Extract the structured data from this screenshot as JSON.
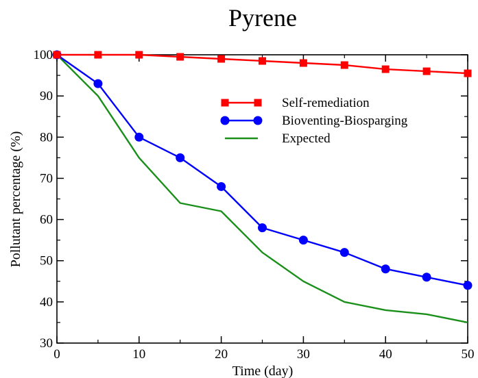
{
  "chart_data": {
    "type": "line",
    "title": "Pyrene",
    "xlabel": "Time (day)",
    "ylabel": "Pollutant percentage (%)",
    "xlim": [
      0,
      50
    ],
    "ylim": [
      30,
      100
    ],
    "x_ticks": [
      0,
      10,
      20,
      30,
      40,
      50
    ],
    "y_ticks": [
      30,
      40,
      50,
      60,
      70,
      80,
      90,
      100
    ],
    "grid": false,
    "legend_placement": "upper-right inside",
    "series": [
      {
        "name": "Self-remediation",
        "color": "#ff0000",
        "marker": "square",
        "x": [
          0,
          5,
          10,
          15,
          20,
          25,
          30,
          35,
          40,
          45,
          50
        ],
        "values": [
          100,
          100,
          100,
          99.5,
          99,
          98.5,
          98,
          97.5,
          96.5,
          96,
          95.5
        ]
      },
      {
        "name": "Bioventing-Biosparging",
        "color": "#0000ff",
        "marker": "circle",
        "x": [
          0,
          5,
          10,
          15,
          20,
          25,
          30,
          35,
          40,
          45,
          50
        ],
        "values": [
          100,
          93,
          80,
          75,
          68,
          58,
          55,
          52,
          48,
          46,
          44
        ]
      },
      {
        "name": "Expected",
        "color": "#1a8f1a",
        "marker": "none",
        "x": [
          0,
          5,
          10,
          15,
          20,
          25,
          30,
          35,
          40,
          45,
          50
        ],
        "values": [
          100,
          90,
          75,
          64,
          62,
          52,
          45,
          40,
          38,
          37,
          35
        ]
      }
    ]
  }
}
